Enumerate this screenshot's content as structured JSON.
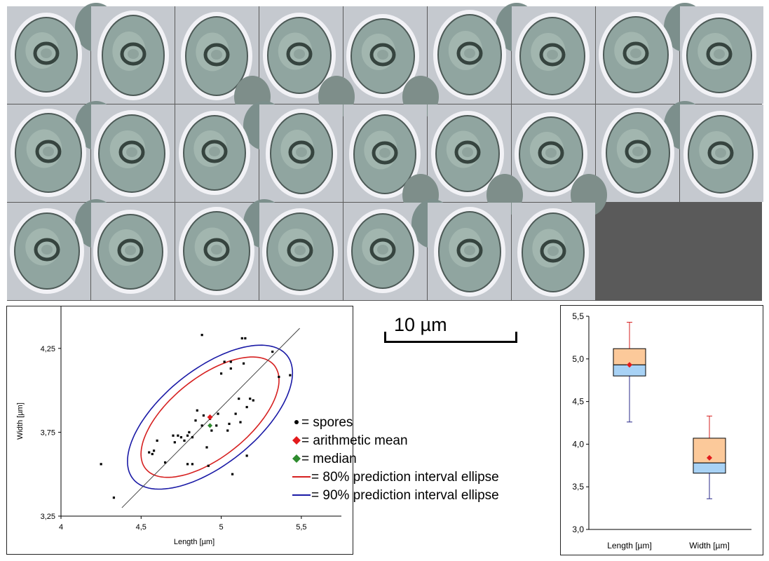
{
  "image": {
    "grid_rows": 3,
    "grid_cols": 9,
    "spore_photo_count": 25
  },
  "scale_bar": {
    "label": "10 µm"
  },
  "chart_data": [
    {
      "type": "scatter",
      "xlabel": "Length [µm]",
      "ylabel": "Width [µm]",
      "xlim": [
        4,
        5.75
      ],
      "ylim": [
        3.25,
        4.5
      ],
      "xticks": [
        "4",
        "4,5",
        "5",
        "5,5"
      ],
      "yticks": [
        "3,25",
        "3,75",
        "4,25"
      ],
      "grid": false,
      "legend_position": "right",
      "legend": [
        {
          "symbol": "dot",
          "color": "#000000",
          "label": "= spores"
        },
        {
          "symbol": "diamond",
          "color": "#e31a1c",
          "label": "= arithmetic mean"
        },
        {
          "symbol": "diamond",
          "color": "#2e8b2e",
          "label": "= median"
        },
        {
          "symbol": "line",
          "color": "#d62020",
          "label": "= 80% prediction interval ellipse"
        },
        {
          "symbol": "line",
          "color": "#1a1aa6",
          "label": "= 90% prediction interval ellipse"
        }
      ],
      "spores": [
        [
          4.25,
          3.56
        ],
        [
          4.33,
          3.36
        ],
        [
          4.55,
          3.63
        ],
        [
          4.57,
          3.62
        ],
        [
          4.58,
          3.64
        ],
        [
          4.6,
          3.7
        ],
        [
          4.65,
          3.57
        ],
        [
          4.7,
          3.73
        ],
        [
          4.71,
          3.69
        ],
        [
          4.73,
          3.73
        ],
        [
          4.75,
          3.72
        ],
        [
          4.77,
          3.7
        ],
        [
          4.79,
          3.56
        ],
        [
          4.79,
          3.73
        ],
        [
          4.8,
          3.75
        ],
        [
          4.82,
          3.56
        ],
        [
          4.82,
          3.72
        ],
        [
          4.84,
          3.82
        ],
        [
          4.85,
          3.88
        ],
        [
          4.88,
          3.79
        ],
        [
          4.88,
          4.33
        ],
        [
          4.89,
          3.85
        ],
        [
          4.91,
          3.66
        ],
        [
          4.92,
          3.55
        ],
        [
          4.93,
          3.83
        ],
        [
          4.94,
          3.76
        ],
        [
          4.97,
          3.79
        ],
        [
          4.98,
          3.86
        ],
        [
          5.0,
          4.1
        ],
        [
          5.02,
          4.17
        ],
        [
          5.04,
          3.76
        ],
        [
          5.05,
          3.8
        ],
        [
          5.06,
          4.13
        ],
        [
          5.06,
          4.17
        ],
        [
          5.07,
          3.5
        ],
        [
          5.09,
          3.86
        ],
        [
          5.11,
          3.95
        ],
        [
          5.12,
          3.81
        ],
        [
          5.13,
          4.31
        ],
        [
          5.14,
          4.16
        ],
        [
          5.15,
          4.31
        ],
        [
          5.16,
          3.61
        ],
        [
          5.16,
          3.9
        ],
        [
          5.18,
          3.95
        ],
        [
          5.2,
          3.94
        ],
        [
          5.32,
          4.23
        ],
        [
          5.36,
          4.08
        ],
        [
          5.43,
          4.09
        ]
      ],
      "mean": [
        4.93,
        3.84
      ],
      "median": [
        4.93,
        3.79
      ],
      "ellipse_80": {
        "center": [
          4.93,
          3.84
        ],
        "sx": 0.24,
        "sy": 0.2,
        "rho": 0.615,
        "chi2": 3.219
      },
      "ellipse_90": {
        "center": [
          4.93,
          3.84
        ],
        "sx": 0.24,
        "sy": 0.2,
        "rho": 0.615,
        "chi2": 4.605
      },
      "regression_line": [
        [
          4.38,
          3.3
        ],
        [
          5.49,
          4.37
        ]
      ]
    },
    {
      "type": "box",
      "categories": [
        "Length [µm]",
        "Width [µm]"
      ],
      "ylim": [
        3.0,
        5.5
      ],
      "yticks": [
        "3,0",
        "3,5",
        "4,0",
        "4,5",
        "5,0",
        "5,5"
      ],
      "boxes": [
        {
          "name": "Length [µm]",
          "min": 4.26,
          "q1": 4.8,
          "median": 4.93,
          "q3": 5.12,
          "max": 5.43,
          "mean": 4.93
        },
        {
          "name": "Width [µm]",
          "min": 3.36,
          "q1": 3.66,
          "median": 3.78,
          "q3": 4.07,
          "max": 4.33,
          "mean": 3.84
        }
      ],
      "colors": {
        "upper": "#fcc99a",
        "lower": "#a8d2f5",
        "upper_whisker": "#d62020",
        "lower_whisker": "#2a2a8a",
        "mean_marker": "#e31a1c"
      }
    }
  ]
}
